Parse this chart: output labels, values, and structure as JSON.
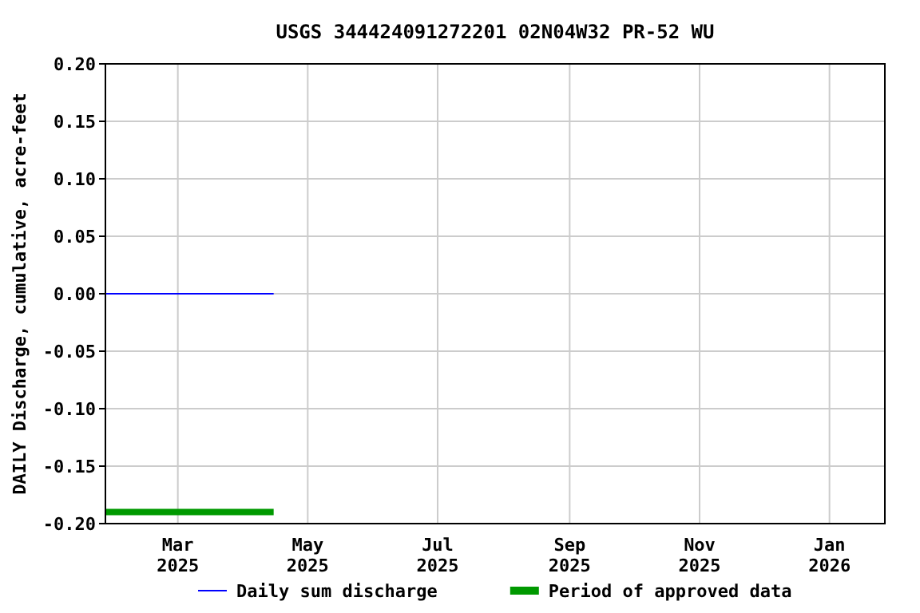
{
  "chart_data": {
    "type": "line",
    "title": "USGS 344424091272201 02N04W32 PR-52 WU",
    "ylabel": "DAILY Discharge, cumulative, acre-feet",
    "xlim": [
      "2025-01-26",
      "2026-01-27"
    ],
    "xticks": [
      {
        "value": "2025-03-01",
        "label": "Mar\n2025"
      },
      {
        "value": "2025-05-01",
        "label": "May\n2025"
      },
      {
        "value": "2025-07-01",
        "label": "Jul\n2025"
      },
      {
        "value": "2025-09-01",
        "label": "Sep\n2025"
      },
      {
        "value": "2025-11-01",
        "label": "Nov\n2025"
      },
      {
        "value": "2026-01-01",
        "label": "Jan\n2026"
      }
    ],
    "ylim": [
      -0.2,
      0.2
    ],
    "yticks": [
      {
        "value": 0.2,
        "label": "0.20"
      },
      {
        "value": 0.15,
        "label": "0.15"
      },
      {
        "value": 0.1,
        "label": "0.10"
      },
      {
        "value": 0.05,
        "label": "0.05"
      },
      {
        "value": 0,
        "label": "0.00"
      },
      {
        "value": -0.05,
        "label": "-0.05"
      },
      {
        "value": -0.1,
        "label": "-0.10"
      },
      {
        "value": -0.15,
        "label": "-0.15"
      },
      {
        "value": -0.2,
        "label": "-0.20"
      }
    ],
    "series": [
      {
        "name": "Daily sum discharge",
        "color": "#0000ff",
        "x": [
          "2025-01-26",
          "2025-04-15"
        ],
        "values": [
          0,
          0
        ]
      },
      {
        "name": "Period of approved data",
        "color": "#009900",
        "x": [
          "2025-01-26",
          "2025-04-15"
        ],
        "values": [
          -0.19,
          -0.19
        ]
      }
    ],
    "grid": true,
    "legend": "bottom"
  }
}
